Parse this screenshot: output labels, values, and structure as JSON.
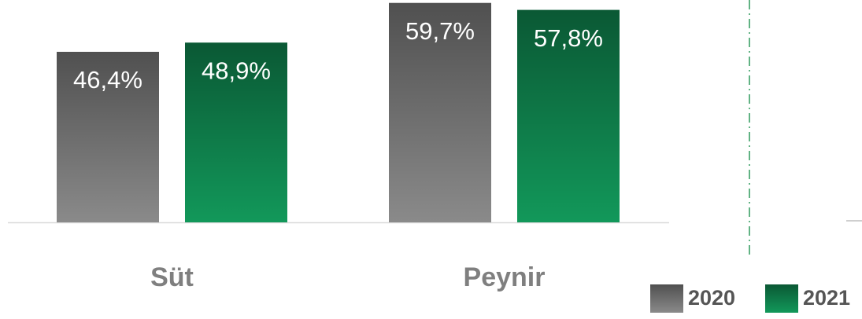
{
  "chart_data": {
    "type": "bar",
    "categories": [
      "Süt",
      "Peynir"
    ],
    "series": [
      {
        "name": "2020",
        "color": "#8a8a8a",
        "values": [
          46.4,
          59.7
        ],
        "value_labels": [
          "46,4%",
          "59,7%"
        ]
      },
      {
        "name": "2021",
        "color": "#12985a",
        "values": [
          48.9,
          57.8
        ],
        "value_labels": [
          "48,9%",
          "57,8%"
        ]
      }
    ],
    "ylim": [
      0,
      60.5
    ]
  }
}
